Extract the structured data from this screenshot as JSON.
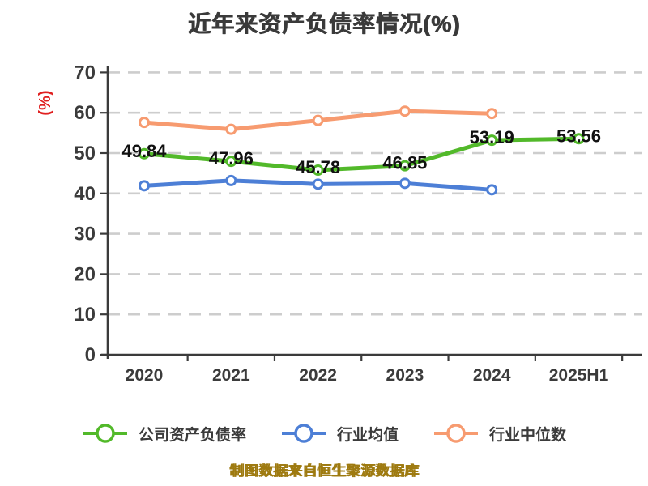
{
  "title": "近年来资产负债率情况(%)",
  "y_unit_label": "(%)",
  "source_note": "制图数据来自恒生聚源数据库",
  "colors": {
    "background": "#ffffff",
    "axis": "#3b3b3b",
    "grid": "#cdcdcd",
    "tick_text": "#3b3b3b",
    "data_label": "#111111",
    "y_unit_label": "#e02121",
    "source_note": "#9e7a10",
    "company": "#52b92a",
    "industry_mean": "#4d7fd6",
    "industry_median": "#f79b70"
  },
  "legend": {
    "items": [
      {
        "label": "公司资产负债率",
        "color": "#52b92a"
      },
      {
        "label": "行业均值",
        "color": "#4d7fd6"
      },
      {
        "label": "行业中位数",
        "color": "#f79b70"
      }
    ]
  },
  "chart_data": {
    "type": "line",
    "title": "近年来资产负债率情况(%)",
    "categories": [
      "2020",
      "2021",
      "2022",
      "2023",
      "2024",
      "2025H1"
    ],
    "series": [
      {
        "name": "公司资产负债率",
        "color": "#52b92a",
        "values": [
          49.84,
          47.96,
          45.78,
          46.85,
          53.19,
          53.56
        ],
        "data_labels": [
          "49.84",
          "47.96",
          "45.78",
          "46.85",
          "53.19",
          "53.56"
        ]
      },
      {
        "name": "行业均值",
        "color": "#4d7fd6",
        "values": [
          41.9,
          43.2,
          42.3,
          42.5,
          40.9
        ]
      },
      {
        "name": "行业中位数",
        "color": "#f79b70",
        "values": [
          57.6,
          55.9,
          58.1,
          60.4,
          59.8
        ]
      }
    ],
    "xlabel": "",
    "ylabel": "(%)",
    "ylim": [
      0,
      70
    ],
    "yticks": [
      0,
      10,
      20,
      30,
      40,
      50,
      60,
      70
    ],
    "grid": "horizontal-dashed",
    "legend_position": "bottom"
  }
}
